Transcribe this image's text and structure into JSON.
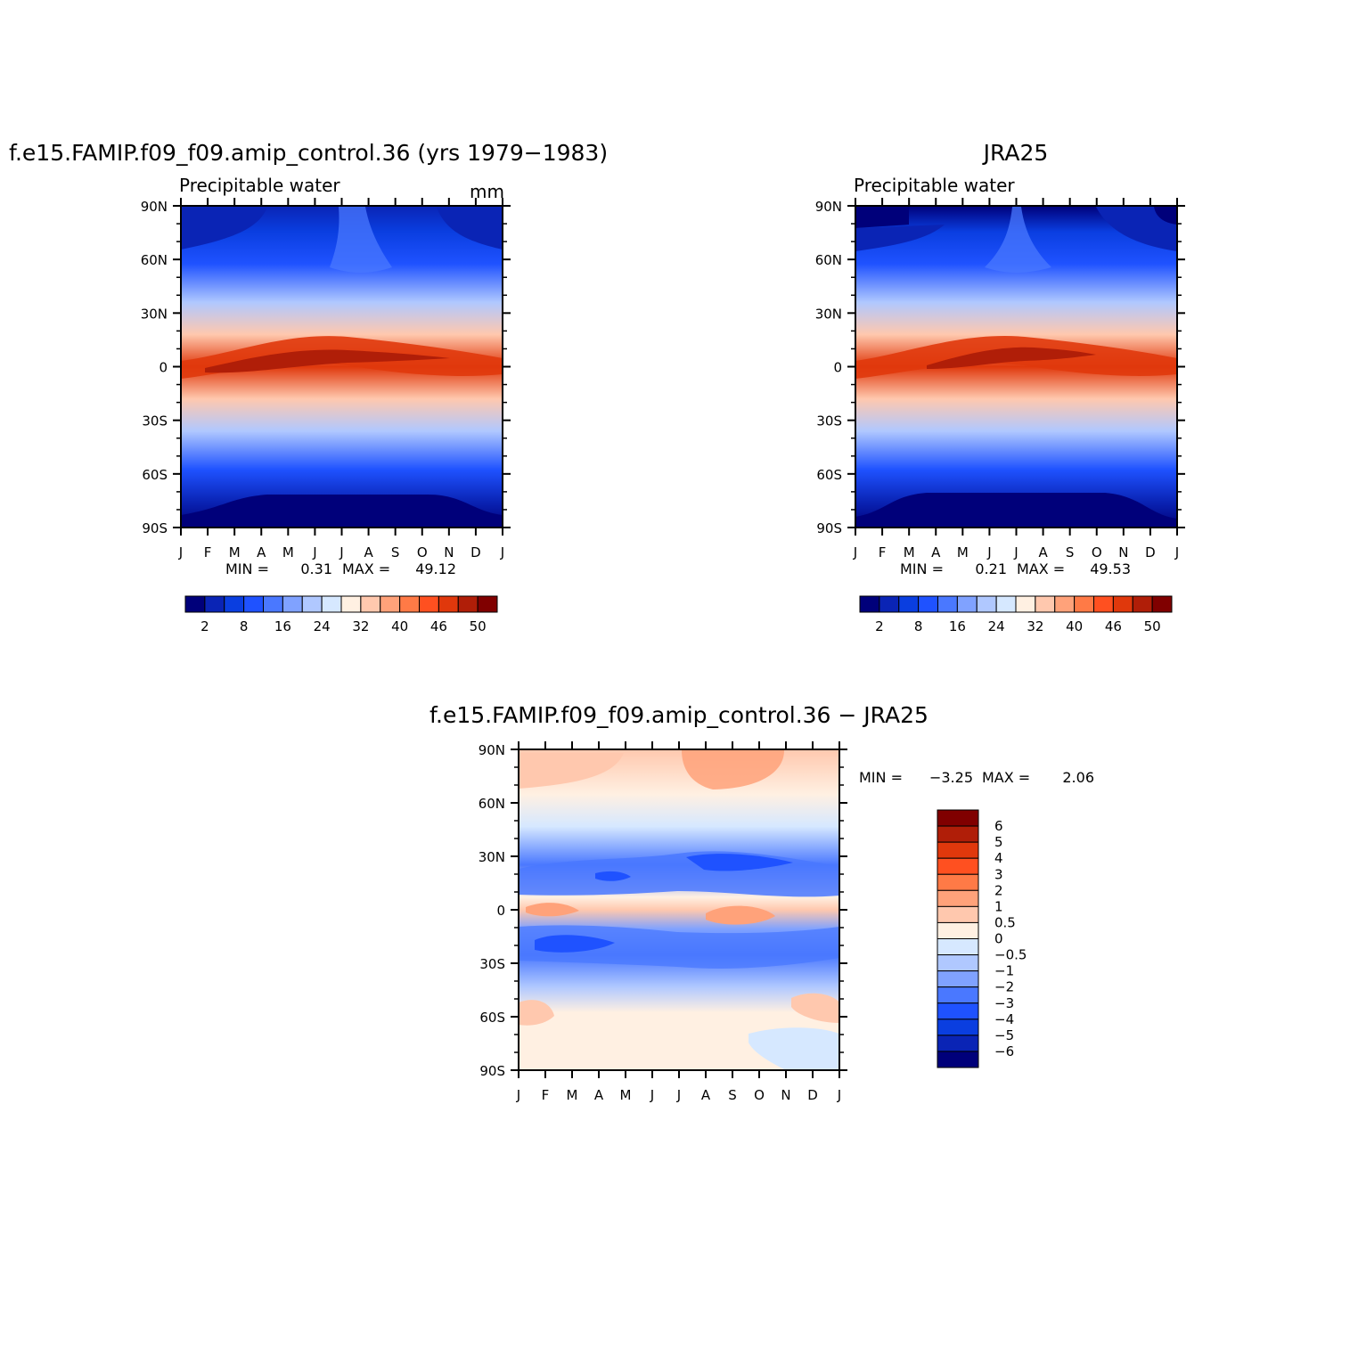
{
  "chart_data": [
    {
      "type": "heatmap",
      "title": "f.e15.FAMIP.f09_f09.amip_control.36 (yrs 1979−1983)",
      "subtitle_left": "Precipitable water",
      "subtitle_right": "mm",
      "x_ticks": [
        "J",
        "F",
        "M",
        "A",
        "M",
        "J",
        "J",
        "A",
        "S",
        "O",
        "N",
        "D",
        "J"
      ],
      "y_ticks": [
        "90N",
        "60N",
        "30N",
        "0",
        "30S",
        "60S",
        "90S"
      ],
      "stats": {
        "min_label": "MIN =",
        "min": "0.31",
        "max_label": "MAX =",
        "max": "49.12"
      },
      "colorbar": {
        "labels": [
          "2",
          "8",
          "16",
          "24",
          "32",
          "40",
          "46",
          "50"
        ],
        "colors": [
          "#00007a",
          "#0a24b5",
          "#0a3ee0",
          "#1f52ff",
          "#4a78ff",
          "#80a2ff",
          "#b0c8ff",
          "#d6e8ff",
          "#fff0e2",
          "#ffc8ae",
          "#ffa27a",
          "#ff7a46",
          "#ff5020",
          "#e0380c",
          "#b01e08",
          "#800000"
        ]
      }
    },
    {
      "type": "heatmap",
      "title": "JRA25",
      "subtitle_left": "Precipitable water",
      "x_ticks": [
        "J",
        "F",
        "M",
        "A",
        "M",
        "J",
        "J",
        "A",
        "S",
        "O",
        "N",
        "D",
        "J"
      ],
      "y_ticks": [
        "90N",
        "60N",
        "30N",
        "0",
        "30S",
        "60S",
        "90S"
      ],
      "stats": {
        "min_label": "MIN =",
        "min": "0.21",
        "max_label": "MAX =",
        "max": "49.53"
      },
      "colorbar": {
        "labels": [
          "2",
          "8",
          "16",
          "24",
          "32",
          "40",
          "46",
          "50"
        ],
        "colors": [
          "#00007a",
          "#0a24b5",
          "#0a3ee0",
          "#1f52ff",
          "#4a78ff",
          "#80a2ff",
          "#b0c8ff",
          "#d6e8ff",
          "#fff0e2",
          "#ffc8ae",
          "#ffa27a",
          "#ff7a46",
          "#ff5020",
          "#e0380c",
          "#b01e08",
          "#800000"
        ]
      }
    },
    {
      "type": "heatmap",
      "title": "f.e15.FAMIP.f09_f09.amip_control.36 − JRA25",
      "x_ticks": [
        "J",
        "F",
        "M",
        "A",
        "M",
        "J",
        "J",
        "A",
        "S",
        "O",
        "N",
        "D",
        "J"
      ],
      "y_ticks": [
        "90N",
        "60N",
        "30N",
        "0",
        "30S",
        "60S",
        "90S"
      ],
      "stats": {
        "min_label": "MIN =",
        "min": "−3.25",
        "max_label": "MAX =",
        "max": "2.06"
      },
      "colorbar": {
        "labels": [
          "6",
          "5",
          "4",
          "3",
          "2",
          "1",
          "0.5",
          "0",
          "−0.5",
          "−1",
          "−2",
          "−3",
          "−4",
          "−5",
          "−6"
        ],
        "colors": [
          "#800000",
          "#b01e08",
          "#e0380c",
          "#ff5020",
          "#ff7a46",
          "#ffa27a",
          "#ffc8ae",
          "#fff0e2",
          "#d6e8ff",
          "#b0c8ff",
          "#80a2ff",
          "#4a78ff",
          "#1f52ff",
          "#0a3ee0",
          "#0a24b5",
          "#00007a"
        ]
      }
    }
  ]
}
